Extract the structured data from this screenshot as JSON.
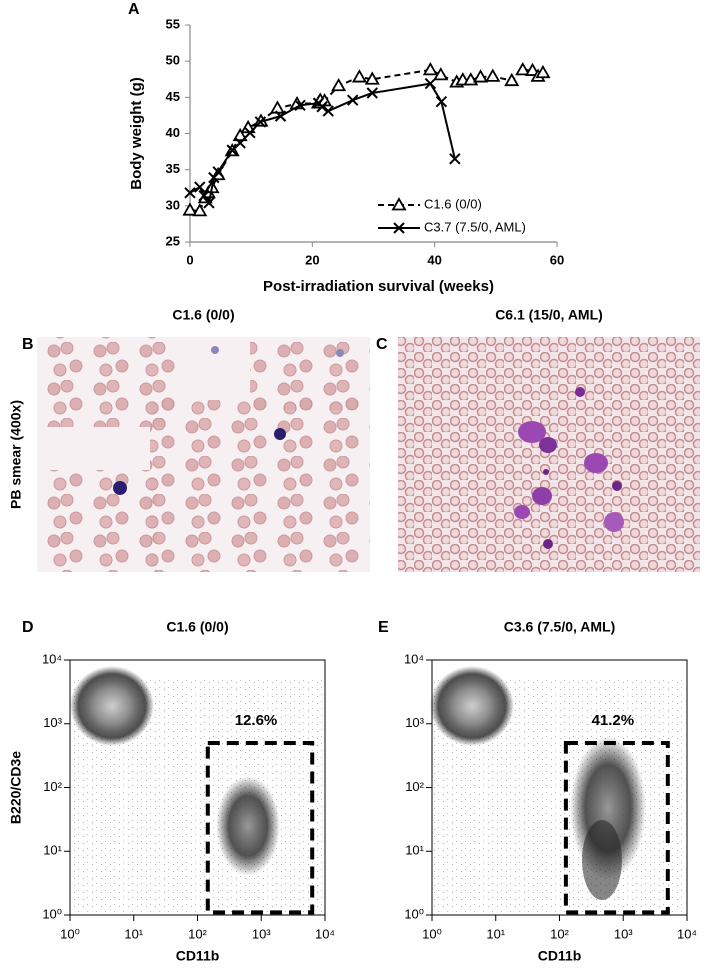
{
  "chart_data": [
    {
      "type": "line",
      "panel_label": "A",
      "xlabel": "Post-irradiation survival (weeks)",
      "ylabel": "Body weight (g)",
      "xlim": [
        0,
        60
      ],
      "ylim": [
        25,
        55
      ],
      "xticks": [
        0,
        20,
        40,
        60
      ],
      "yticks": [
        25,
        30,
        35,
        40,
        45,
        50,
        55
      ],
      "grid": false,
      "legend": "lower right",
      "series": [
        {
          "name": "C1.6 (0/0)",
          "color": "#000000",
          "marker": "triangle",
          "dashed": true,
          "x": [
            0,
            1.6,
            2.5,
            3,
            3.6,
            4.6,
            6.9,
            8.2,
            9.5,
            11.6,
            14.3,
            17.5,
            21,
            21.3,
            22,
            24.3,
            27.7,
            29.8,
            39.3,
            41,
            43.6,
            44.6,
            45.9,
            47.5,
            49.5,
            52.6,
            54.4,
            56,
            56.9,
            57.7
          ],
          "values": [
            29.4,
            29.3,
            31.1,
            31.8,
            32.5,
            34.3,
            37.6,
            39.7,
            40.8,
            41.7,
            43.5,
            44.1,
            44.2,
            44.6,
            44.5,
            46.6,
            47.8,
            47.5,
            48.8,
            48.1,
            47.1,
            47.4,
            47.4,
            47.8,
            47.9,
            47.3,
            48.8,
            48.7,
            47.9,
            48.4
          ]
        },
        {
          "name": "C3.7 (7.5/0, AML)",
          "color": "#000000",
          "marker": "x",
          "dashed": false,
          "x": [
            0,
            1.6,
            2.3,
            3.1,
            3.9,
            4.6,
            6.9,
            8.2,
            9.8,
            11.5,
            14.8,
            18,
            21,
            21.6,
            22.6,
            26.6,
            29.8,
            39.3,
            41.1,
            43.3
          ],
          "values": [
            31.8,
            32.6,
            31.4,
            30.4,
            33.9,
            34.7,
            37.7,
            38.7,
            40.1,
            41.6,
            42.4,
            43.9,
            44.2,
            43.7,
            43.1,
            44.6,
            45.6,
            46.9,
            44.4,
            36.5
          ]
        }
      ]
    },
    {
      "type": "image",
      "panel_label": "B",
      "title": "C1.6 (0/0)",
      "ylabel": "PB smear (400x)"
    },
    {
      "type": "image",
      "panel_label": "C",
      "title": "C6.1 (15/0, AML)"
    },
    {
      "type": "density",
      "panel_label": "D",
      "title": "C1.6 (0/0)",
      "xlabel": "CD11b",
      "ylabel": "B220/CD3e",
      "log_scale": true,
      "xlim": [
        1,
        10000
      ],
      "ylim": [
        1,
        10000
      ],
      "xticks": [
        {
          "value": 1,
          "label": "10⁰"
        },
        {
          "value": 10,
          "label": "10¹"
        },
        {
          "value": 100,
          "label": "10²"
        },
        {
          "value": 1000,
          "label": "10³"
        },
        {
          "value": 10000,
          "label": "10⁴"
        }
      ],
      "yticks": [
        {
          "value": 1,
          "label": "10⁰"
        },
        {
          "value": 10,
          "label": "10¹"
        },
        {
          "value": 100,
          "label": "10²"
        },
        {
          "value": 1000,
          "label": "10³"
        },
        {
          "value": 10000,
          "label": "10⁴"
        }
      ],
      "gate": {
        "x": [
          145,
          6300
        ],
        "y": [
          1.1,
          500
        ],
        "label": "12.6%"
      }
    },
    {
      "type": "density",
      "panel_label": "E",
      "title": "C3.6 (7.5/0, AML)",
      "xlabel": "CD11b",
      "log_scale": true,
      "xlim": [
        1,
        10000
      ],
      "ylim": [
        1,
        10000
      ],
      "xticks": [
        {
          "value": 1,
          "label": "10⁰"
        },
        {
          "value": 10,
          "label": "10¹"
        },
        {
          "value": 100,
          "label": "10²"
        },
        {
          "value": 1000,
          "label": "10³"
        },
        {
          "value": 10000,
          "label": "10⁴"
        }
      ],
      "yticks": [
        {
          "value": 1,
          "label": "10⁰"
        },
        {
          "value": 10,
          "label": "10¹"
        },
        {
          "value": 100,
          "label": "10²"
        },
        {
          "value": 1000,
          "label": "10³"
        },
        {
          "value": 10000,
          "label": "10⁴"
        }
      ],
      "gate": {
        "x": [
          126,
          5000
        ],
        "y": [
          1.1,
          500
        ],
        "label": "41.2%"
      }
    }
  ]
}
